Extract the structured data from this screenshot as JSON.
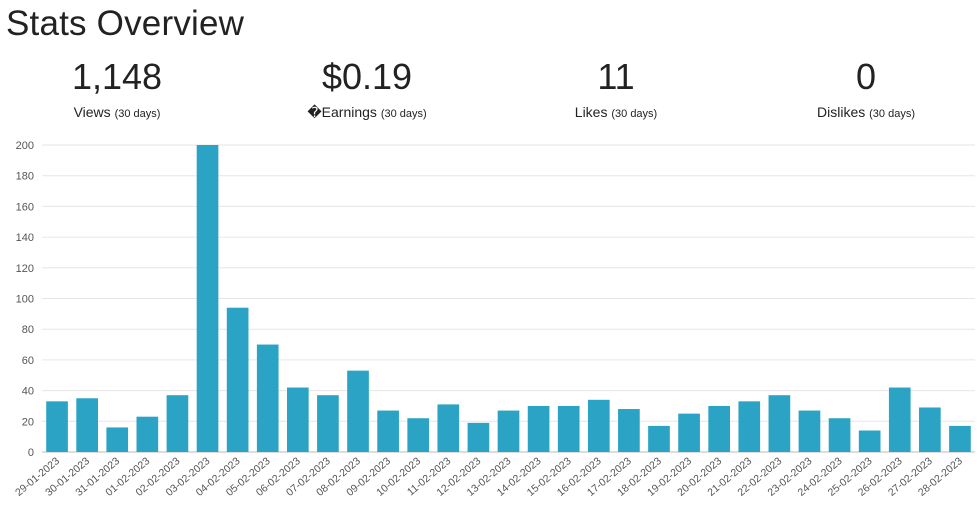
{
  "header": {
    "title": "Stats Overview"
  },
  "stats": [
    {
      "value": "1,148",
      "label": "Views",
      "period": "(30 days)"
    },
    {
      "value": "$0.19",
      "label": "�Earnings",
      "period": "(30 days)"
    },
    {
      "value": "11",
      "label": "Likes",
      "period": "(30 days)"
    },
    {
      "value": "0",
      "label": "Dislikes",
      "period": "(30 days)"
    }
  ],
  "chart_data": {
    "type": "bar",
    "title": "",
    "xlabel": "",
    "ylabel": "",
    "ylim": [
      0,
      200
    ],
    "yticks": [
      0,
      20,
      40,
      60,
      80,
      100,
      120,
      140,
      160,
      180,
      200
    ],
    "grid": true,
    "legend": "none",
    "bar_color": "#2aa3c4",
    "categories": [
      "29-01-2023",
      "30-01-2023",
      "31-01-2023",
      "01-02-2023",
      "02-02-2023",
      "03-02-2023",
      "04-02-2023",
      "05-02-2023",
      "06-02-2023",
      "07-02-2023",
      "08-02-2023",
      "09-02-2023",
      "10-02-2023",
      "11-02-2023",
      "12-02-2023",
      "13-02-2023",
      "14-02-2023",
      "15-02-2023",
      "16-02-2023",
      "17-02-2023",
      "18-02-2023",
      "19-02-2023",
      "20-02-2023",
      "21-02-2023",
      "22-02-2023",
      "23-02-2023",
      "24-02-2023",
      "25-02-2023",
      "26-02-2023",
      "27-02-2023",
      "28-02-2023"
    ],
    "values": [
      33,
      35,
      16,
      23,
      37,
      200,
      94,
      70,
      42,
      37,
      53,
      27,
      22,
      31,
      19,
      27,
      30,
      30,
      34,
      28,
      17,
      25,
      30,
      33,
      37,
      27,
      22,
      14,
      42,
      29,
      17
    ]
  }
}
